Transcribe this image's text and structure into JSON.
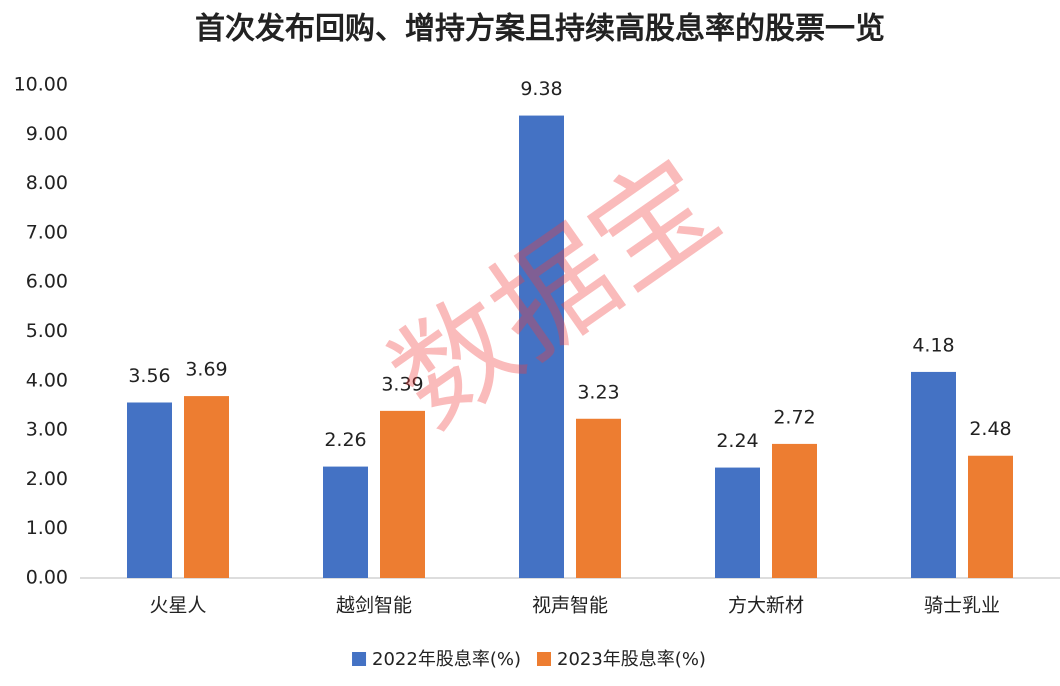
{
  "chart_data": {
    "type": "bar",
    "title": "首次发布回购、增持方案且持续高股息率的股票一览",
    "watermark": "数据宝",
    "categories": [
      "火星人",
      "越剑智能",
      "视声智能",
      "方大新材",
      "骑士乳业"
    ],
    "series": [
      {
        "name": "2022年股息率(%)",
        "color": "#4472c4",
        "values": [
          3.56,
          2.26,
          9.38,
          2.24,
          4.18
        ]
      },
      {
        "name": "2023年股息率(%)",
        "color": "#ed7d31",
        "values": [
          3.69,
          3.39,
          3.23,
          2.72,
          2.48
        ]
      }
    ],
    "ylim": [
      0,
      10
    ],
    "yticks": [
      {
        "value": 0,
        "label": "0.00"
      },
      {
        "value": 1,
        "label": "1.00"
      },
      {
        "value": 2,
        "label": "2.00"
      },
      {
        "value": 3,
        "label": "3.00"
      },
      {
        "value": 4,
        "label": "4.00"
      },
      {
        "value": 5,
        "label": "5.00"
      },
      {
        "value": 6,
        "label": "6.00"
      },
      {
        "value": 7,
        "label": "7.00"
      },
      {
        "value": 8,
        "label": "8.00"
      },
      {
        "value": 9,
        "label": "9.00"
      },
      {
        "value": 10,
        "label": "10.00"
      }
    ],
    "grid": false,
    "legend": "bottom"
  }
}
